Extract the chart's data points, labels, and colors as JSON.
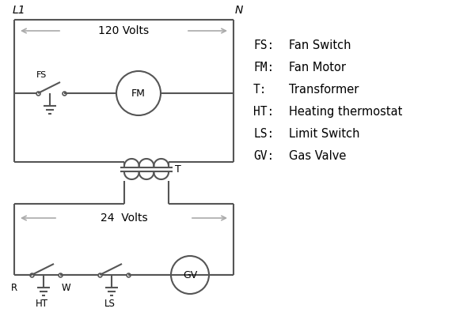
{
  "line_color": "#555555",
  "text_color": "#000000",
  "bg_color": "#ffffff",
  "L1_label": "L1",
  "N_label": "N",
  "volts120_label": "120 Volts",
  "volts24_label": "24  Volts",
  "T_label": "T",
  "R_label": "R",
  "W_label": "W",
  "HT_label": "HT",
  "LS_label": "LS",
  "legend_items": [
    [
      "FS:",
      "Fan Switch"
    ],
    [
      "FM:",
      "Fan Motor"
    ],
    [
      "T:",
      "Transformer"
    ],
    [
      "HT:",
      "Heating thermostat"
    ],
    [
      "LS:",
      "Limit Switch"
    ],
    [
      "GV:",
      "Gas Valve"
    ]
  ]
}
